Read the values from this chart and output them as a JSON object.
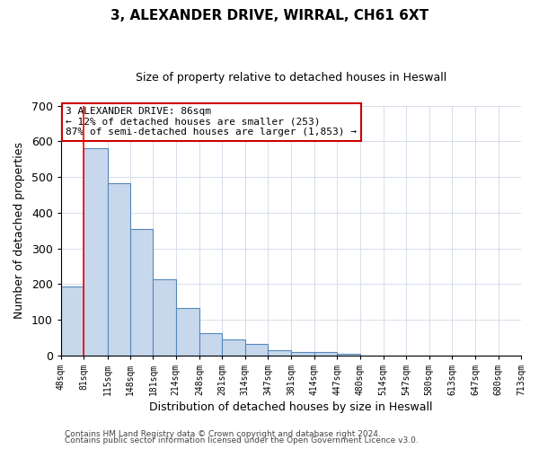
{
  "title": "3, ALEXANDER DRIVE, WIRRAL, CH61 6XT",
  "subtitle": "Size of property relative to detached houses in Heswall",
  "xlabel": "Distribution of detached houses by size in Heswall",
  "ylabel": "Number of detached properties",
  "bin_edges": [
    48,
    81,
    115,
    148,
    181,
    214,
    248,
    281,
    314,
    347,
    381,
    414,
    447,
    480,
    514,
    547,
    580,
    613,
    647,
    680,
    713
  ],
  "bin_labels": [
    "48sqm",
    "81sqm",
    "115sqm",
    "148sqm",
    "181sqm",
    "214sqm",
    "248sqm",
    "281sqm",
    "314sqm",
    "347sqm",
    "381sqm",
    "414sqm",
    "447sqm",
    "480sqm",
    "514sqm",
    "547sqm",
    "580sqm",
    "613sqm",
    "647sqm",
    "680sqm",
    "713sqm"
  ],
  "bar_heights": [
    193,
    580,
    483,
    355,
    214,
    133,
    62,
    44,
    33,
    14,
    9,
    10,
    5,
    0,
    0,
    0,
    0,
    0,
    0,
    0
  ],
  "bar_color": "#c8d8ec",
  "bar_edgecolor": "#5588bb",
  "property_line_x": 81,
  "ylim": [
    0,
    700
  ],
  "yticks": [
    0,
    100,
    200,
    300,
    400,
    500,
    600,
    700
  ],
  "annotation_title": "3 ALEXANDER DRIVE: 86sqm",
  "annotation_line1": "← 12% of detached houses are smaller (253)",
  "annotation_line2": "87% of semi-detached houses are larger (1,853) →",
  "annotation_box_color": "#ffffff",
  "annotation_box_edgecolor": "#cc0000",
  "footer_line1": "Contains HM Land Registry data © Crown copyright and database right 2024.",
  "footer_line2": "Contains public sector information licensed under the Open Government Licence v3.0.",
  "background_color": "#ffffff",
  "grid_color": "#d0d8e8",
  "title_fontsize": 11,
  "subtitle_fontsize": 9,
  "xlabel_fontsize": 9,
  "ylabel_fontsize": 9,
  "xtick_fontsize": 7,
  "ytick_fontsize": 9,
  "footer_fontsize": 6.5
}
